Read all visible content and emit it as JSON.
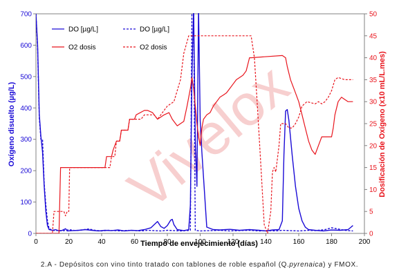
{
  "caption": {
    "prefix": "2.A - Depósitos con vino tinto tratado con tablones de roble español (Q.",
    "italic": "pyrenaica",
    "suffix": ") y FMOX."
  },
  "watermark": "Vivelox",
  "colors": {
    "do": "#1a0ad6",
    "o2": "#e8141c",
    "axis": "#808080",
    "watermark": "#f7cfcf"
  },
  "chart_data": {
    "type": "line",
    "xlabel": "Tiempo de envejecimiento (días)",
    "ylabel_left": "Oxígeno disuelto (µg/L)",
    "ylabel_right": "Dosificación de  Oxígeno (x10 mL/L.mes)",
    "xlim": [
      0,
      200
    ],
    "ylim_left": [
      0,
      700
    ],
    "ylim_right": [
      0,
      50
    ],
    "xticks": [
      0,
      20,
      40,
      60,
      80,
      100,
      120,
      140,
      160,
      180,
      200
    ],
    "yticks_left": [
      0,
      100,
      200,
      300,
      400,
      500,
      600,
      700
    ],
    "yticks_right": [
      0,
      5,
      10,
      15,
      20,
      25,
      30,
      35,
      40,
      45,
      50
    ],
    "legend": [
      {
        "label": "DO [µg/L]",
        "series": 0
      },
      {
        "label": "DO [µg/L]",
        "series": 1
      },
      {
        "label": "O2 dosis",
        "series": 2
      },
      {
        "label": "O2 dosis",
        "series": 3
      }
    ],
    "series": [
      {
        "name": "DO [µg/L]",
        "axis": "left",
        "style": "solid",
        "color": "#1a0ad6",
        "points": [
          [
            0,
            700
          ],
          [
            1,
            600
          ],
          [
            2,
            380
          ],
          [
            3,
            310
          ],
          [
            4,
            260
          ],
          [
            5,
            150
          ],
          [
            6,
            70
          ],
          [
            7,
            25
          ],
          [
            8,
            12
          ],
          [
            10,
            10
          ],
          [
            12,
            12
          ],
          [
            14,
            8
          ],
          [
            16,
            10
          ],
          [
            18,
            15
          ],
          [
            19,
            8
          ],
          [
            22,
            9
          ],
          [
            26,
            10
          ],
          [
            30,
            12
          ],
          [
            34,
            10
          ],
          [
            38,
            8
          ],
          [
            42,
            10
          ],
          [
            46,
            9
          ],
          [
            50,
            11
          ],
          [
            54,
            8
          ],
          [
            58,
            10
          ],
          [
            62,
            9
          ],
          [
            66,
            12
          ],
          [
            70,
            18
          ],
          [
            72,
            28
          ],
          [
            74,
            38
          ],
          [
            76,
            22
          ],
          [
            78,
            16
          ],
          [
            80,
            25
          ],
          [
            82,
            42
          ],
          [
            83,
            45
          ],
          [
            84,
            28
          ],
          [
            86,
            12
          ],
          [
            90,
            9
          ],
          [
            93,
            12
          ],
          [
            94,
            90
          ],
          [
            95,
            500
          ],
          [
            96,
            720
          ],
          [
            97,
            300
          ],
          [
            98,
            150
          ],
          [
            99,
            720
          ],
          [
            100,
            360
          ],
          [
            101,
            260
          ],
          [
            104,
            20
          ],
          [
            108,
            12
          ],
          [
            112,
            11
          ],
          [
            118,
            13
          ],
          [
            124,
            10
          ],
          [
            130,
            12
          ],
          [
            136,
            10
          ],
          [
            140,
            8
          ],
          [
            144,
            11
          ],
          [
            148,
            12
          ],
          [
            150,
            40
          ],
          [
            151,
            250
          ],
          [
            152,
            390
          ],
          [
            153,
            395
          ],
          [
            154,
            360
          ],
          [
            156,
            250
          ],
          [
            158,
            150
          ],
          [
            160,
            80
          ],
          [
            162,
            40
          ],
          [
            164,
            20
          ],
          [
            166,
            12
          ],
          [
            170,
            10
          ],
          [
            175,
            8
          ],
          [
            180,
            11
          ],
          [
            185,
            10
          ],
          [
            190,
            12
          ],
          [
            193,
            25
          ]
        ]
      },
      {
        "name": "DO [µg/L]",
        "axis": "left",
        "style": "dashed",
        "color": "#1a0ad6",
        "points": [
          [
            0,
            700
          ],
          [
            1,
            590
          ],
          [
            2,
            370
          ],
          [
            3,
            300
          ],
          [
            4,
            300
          ],
          [
            5,
            160
          ],
          [
            6,
            90
          ],
          [
            7,
            40
          ],
          [
            8,
            15
          ],
          [
            10,
            10
          ],
          [
            12,
            9
          ],
          [
            14,
            10
          ],
          [
            16,
            8
          ],
          [
            18,
            10
          ],
          [
            20,
            12
          ],
          [
            24,
            9
          ],
          [
            28,
            11
          ],
          [
            32,
            14
          ],
          [
            36,
            10
          ],
          [
            40,
            8
          ],
          [
            44,
            10
          ],
          [
            48,
            9
          ],
          [
            52,
            8
          ],
          [
            56,
            10
          ],
          [
            60,
            9
          ],
          [
            64,
            8
          ],
          [
            68,
            10
          ],
          [
            72,
            9
          ],
          [
            76,
            8
          ],
          [
            80,
            10
          ],
          [
            84,
            9
          ],
          [
            88,
            8
          ],
          [
            92,
            9
          ],
          [
            94,
            10
          ],
          [
            95,
            720
          ],
          [
            96,
            720
          ],
          [
            97,
            10
          ],
          [
            100,
            8
          ],
          [
            106,
            9
          ],
          [
            112,
            10
          ],
          [
            118,
            8
          ],
          [
            124,
            9
          ],
          [
            130,
            10
          ],
          [
            136,
            8
          ],
          [
            140,
            9
          ],
          [
            146,
            8
          ],
          [
            150,
            10
          ],
          [
            154,
            9
          ],
          [
            160,
            8
          ],
          [
            166,
            10
          ],
          [
            170,
            9
          ],
          [
            176,
            12
          ],
          [
            180,
            18
          ],
          [
            184,
            14
          ],
          [
            188,
            10
          ],
          [
            193,
            8
          ]
        ]
      },
      {
        "name": "O2 dosis",
        "axis": "right",
        "style": "solid",
        "color": "#e8141c",
        "points": [
          [
            0,
            0
          ],
          [
            14,
            0
          ],
          [
            15,
            15
          ],
          [
            40,
            15
          ],
          [
            42,
            15
          ],
          [
            43,
            17.5
          ],
          [
            46,
            17.5
          ],
          [
            47,
            19
          ],
          [
            49,
            21
          ],
          [
            51,
            21
          ],
          [
            52,
            23.5
          ],
          [
            56,
            23.5
          ],
          [
            57,
            26
          ],
          [
            60,
            26
          ],
          [
            61,
            27
          ],
          [
            66,
            28
          ],
          [
            68,
            28
          ],
          [
            71,
            27.5
          ],
          [
            72,
            27
          ],
          [
            74,
            26
          ],
          [
            76,
            26.5
          ],
          [
            78,
            27
          ],
          [
            81,
            27.5
          ],
          [
            83,
            26
          ],
          [
            85,
            25
          ],
          [
            86,
            24.5
          ],
          [
            88,
            25
          ],
          [
            90,
            25.5
          ],
          [
            92,
            29
          ],
          [
            94,
            33
          ],
          [
            95,
            35.5
          ],
          [
            96,
            33
          ],
          [
            97,
            29
          ],
          [
            98,
            25
          ],
          [
            99,
            22
          ],
          [
            100,
            20
          ],
          [
            101,
            24
          ],
          [
            102,
            26
          ],
          [
            104,
            27
          ],
          [
            106,
            27.5
          ],
          [
            108,
            29
          ],
          [
            110,
            30
          ],
          [
            112,
            31
          ],
          [
            114,
            31.5
          ],
          [
            116,
            32
          ],
          [
            118,
            33
          ],
          [
            120,
            34
          ],
          [
            122,
            35
          ],
          [
            124,
            35.5
          ],
          [
            126,
            36
          ],
          [
            128,
            37
          ],
          [
            130,
            40
          ],
          [
            131,
            40
          ],
          [
            150,
            40.5
          ],
          [
            152,
            40
          ],
          [
            153,
            38
          ],
          [
            155,
            35
          ],
          [
            157,
            33
          ],
          [
            160,
            30
          ],
          [
            162,
            27
          ],
          [
            164,
            24
          ],
          [
            166,
            21
          ],
          [
            168,
            19
          ],
          [
            170,
            18
          ],
          [
            172,
            20
          ],
          [
            174,
            22
          ],
          [
            176,
            22
          ],
          [
            178,
            22
          ],
          [
            180,
            22
          ],
          [
            181,
            24
          ],
          [
            182,
            27
          ],
          [
            184,
            30
          ],
          [
            186,
            31
          ],
          [
            188,
            30.5
          ],
          [
            190,
            30
          ],
          [
            193,
            30
          ]
        ]
      },
      {
        "name": "O2 dosis",
        "axis": "right",
        "style": "dashed",
        "color": "#e8141c",
        "points": [
          [
            0,
            0
          ],
          [
            10,
            0
          ],
          [
            11,
            5
          ],
          [
            14,
            5
          ],
          [
            15,
            5
          ],
          [
            16,
            5
          ],
          [
            17,
            5
          ],
          [
            18,
            4
          ],
          [
            19,
            5
          ],
          [
            20,
            5
          ],
          [
            20.5,
            15
          ],
          [
            44,
            15
          ],
          [
            45,
            15
          ],
          [
            46,
            17.5
          ],
          [
            48,
            17.5
          ],
          [
            49,
            21
          ],
          [
            51,
            21
          ],
          [
            52,
            23.5
          ],
          [
            56,
            23.5
          ],
          [
            57,
            26
          ],
          [
            64,
            26
          ],
          [
            66,
            27
          ],
          [
            72,
            27
          ],
          [
            74,
            26
          ],
          [
            76,
            27
          ],
          [
            80,
            29
          ],
          [
            84,
            30
          ],
          [
            88,
            35
          ],
          [
            90,
            41
          ],
          [
            93,
            45
          ],
          [
            96,
            45
          ],
          [
            110,
            45
          ],
          [
            120,
            45
          ],
          [
            131,
            45
          ],
          [
            133,
            40
          ],
          [
            135,
            28
          ],
          [
            137,
            15
          ],
          [
            139,
            2
          ],
          [
            141,
            0
          ],
          [
            143,
            5
          ],
          [
            144,
            14
          ],
          [
            145,
            15
          ],
          [
            146,
            14
          ],
          [
            148,
            20
          ],
          [
            149,
            25
          ],
          [
            152,
            25
          ],
          [
            154,
            24
          ],
          [
            156,
            24
          ],
          [
            158,
            25
          ],
          [
            160,
            26.5
          ],
          [
            162,
            29
          ],
          [
            165,
            30
          ],
          [
            170,
            29.5
          ],
          [
            172,
            30
          ],
          [
            174,
            29.5
          ],
          [
            176,
            30
          ],
          [
            178,
            31
          ],
          [
            180,
            32.5
          ],
          [
            182,
            35
          ],
          [
            184,
            35.5
          ],
          [
            188,
            35
          ],
          [
            190,
            35
          ],
          [
            193,
            35
          ]
        ]
      }
    ]
  }
}
